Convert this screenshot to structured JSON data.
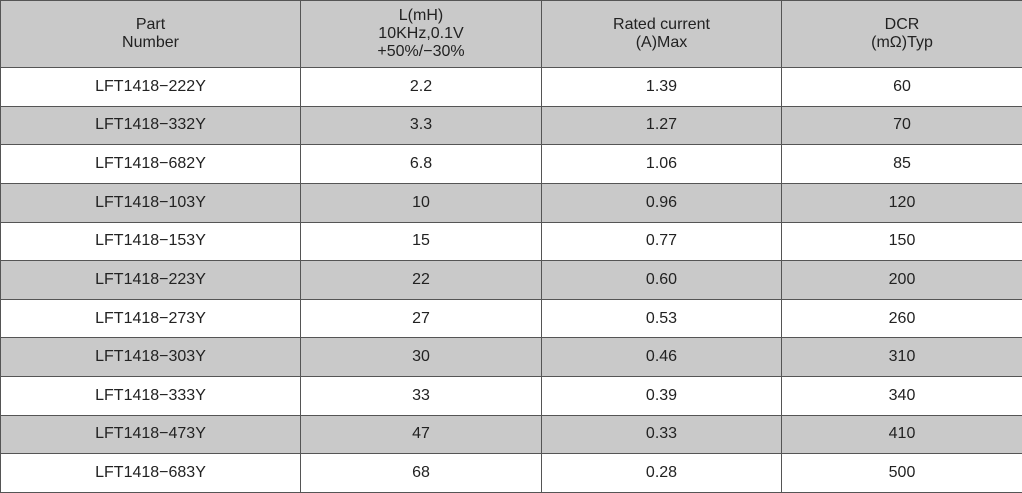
{
  "table": {
    "header": [
      [
        "Part",
        "Number"
      ],
      [
        "L(mH)",
        "10KHz,0.1V",
        "+50%/−30%"
      ],
      [
        "Rated current",
        "(A)Max"
      ],
      [
        "DCR",
        "(mΩ)Typ"
      ]
    ],
    "rows": [
      [
        "LFT1418−222Y",
        "2.2",
        "1.39",
        "60"
      ],
      [
        "LFT1418−332Y",
        "3.3",
        "1.27",
        "70"
      ],
      [
        "LFT1418−682Y",
        "6.8",
        "1.06",
        "85"
      ],
      [
        "LFT1418−103Y",
        "10",
        "0.96",
        "120"
      ],
      [
        "LFT1418−153Y",
        "15",
        "0.77",
        "150"
      ],
      [
        "LFT1418−223Y",
        "22",
        "0.60",
        "200"
      ],
      [
        "LFT1418−273Y",
        "27",
        "0.53",
        "260"
      ],
      [
        "LFT1418−303Y",
        "30",
        "0.46",
        "310"
      ],
      [
        "LFT1418−333Y",
        "33",
        "0.39",
        "340"
      ],
      [
        "LFT1418−473Y",
        "47",
        "0.33",
        "410"
      ],
      [
        "LFT1418−683Y",
        "68",
        "0.28",
        "500"
      ]
    ]
  }
}
